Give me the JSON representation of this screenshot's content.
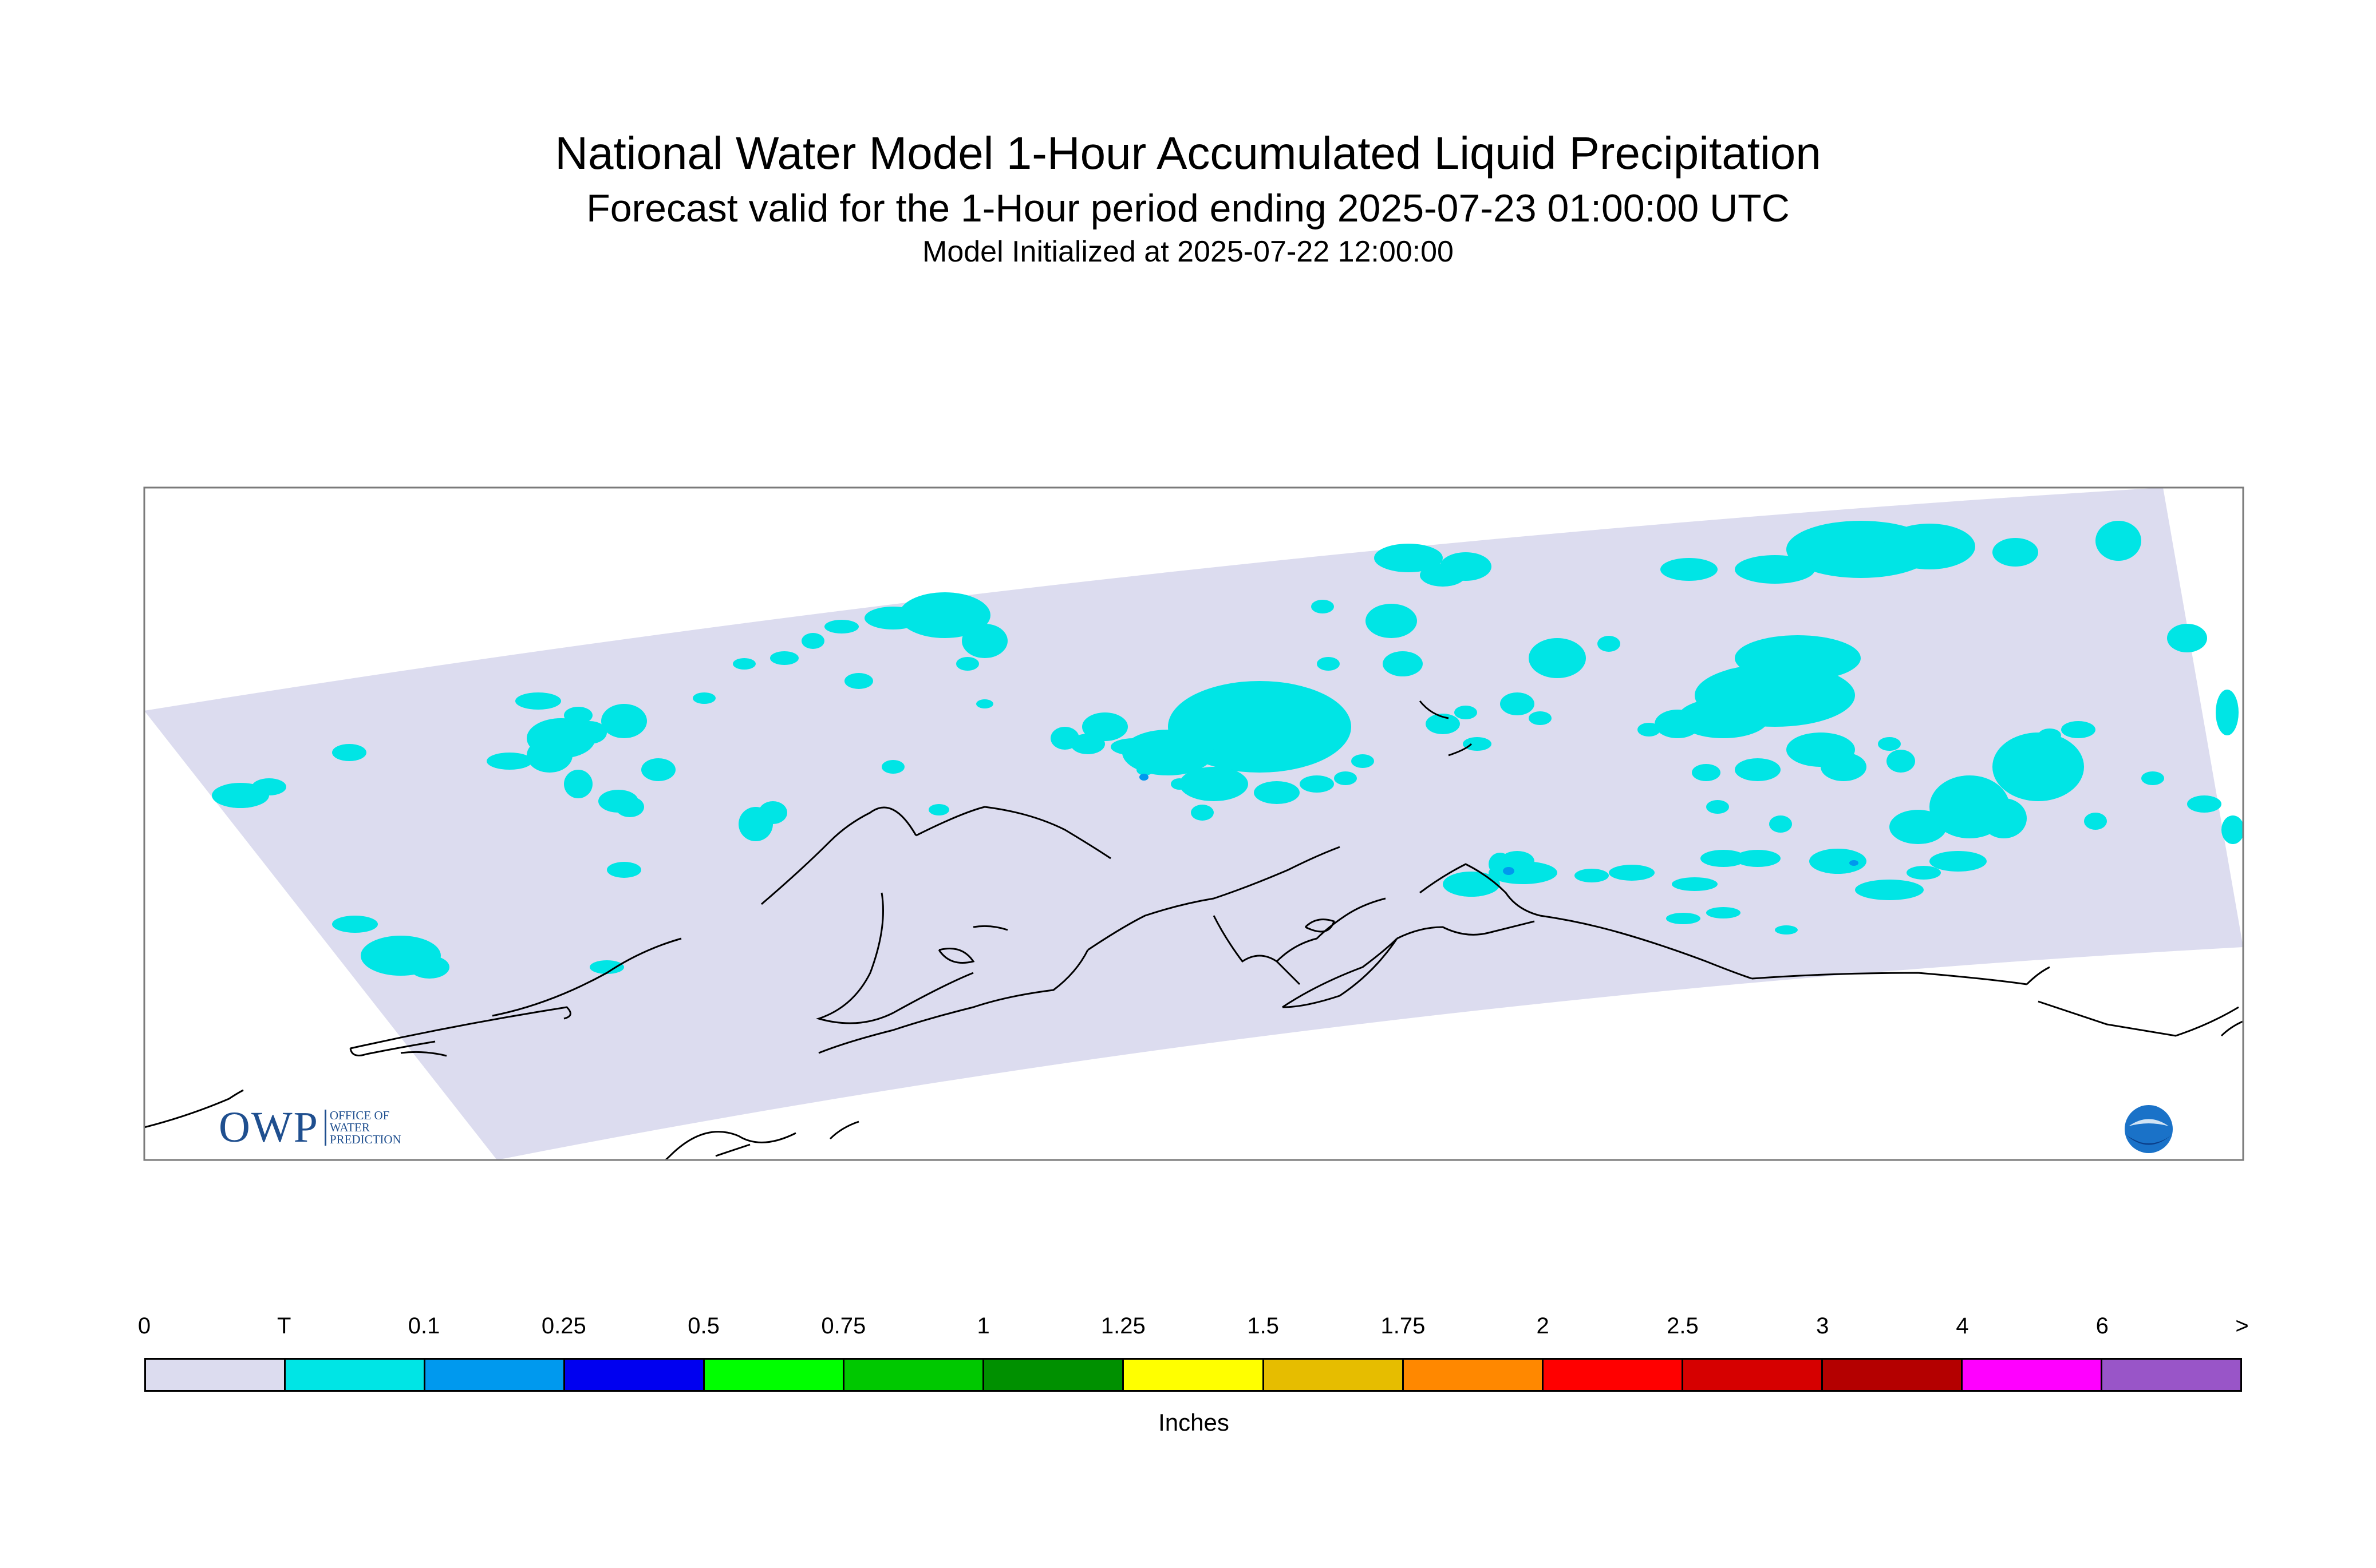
{
  "header": {
    "title": "National Water Model 1-Hour Accumulated Liquid Precipitation",
    "subtitle": "Forecast valid for the 1-Hour period ending 2025-07-23 01:00:00 UTC",
    "init": "Model Initialized at 2025-07-22 12:00:00"
  },
  "legend": {
    "units": "Inches",
    "labels": [
      "0",
      "T",
      "0.1",
      "0.25",
      "0.5",
      "0.75",
      "1",
      "1.25",
      "1.5",
      "1.75",
      "2",
      "2.5",
      "3",
      "4",
      "6",
      ">"
    ],
    "colors": [
      "#dcdcef",
      "#00e5e5",
      "#0099ee",
      "#0000f0",
      "#00ff00",
      "#00c800",
      "#009000",
      "#ffff00",
      "#e6bd00",
      "#ff8800",
      "#ff0000",
      "#d60000",
      "#b40000",
      "#ff00ff",
      "#9955c8"
    ]
  },
  "map": {
    "domain_color": "#dcdcef",
    "trace_color": "#00e5e5",
    "light_color": "#0099ee",
    "coast_color": "#000000"
  },
  "logos": {
    "owp_mark": "OWP",
    "owp_text": [
      "OFFICE OF",
      "WATER",
      "PREDICTION"
    ],
    "noaa_text": "NOAA"
  }
}
